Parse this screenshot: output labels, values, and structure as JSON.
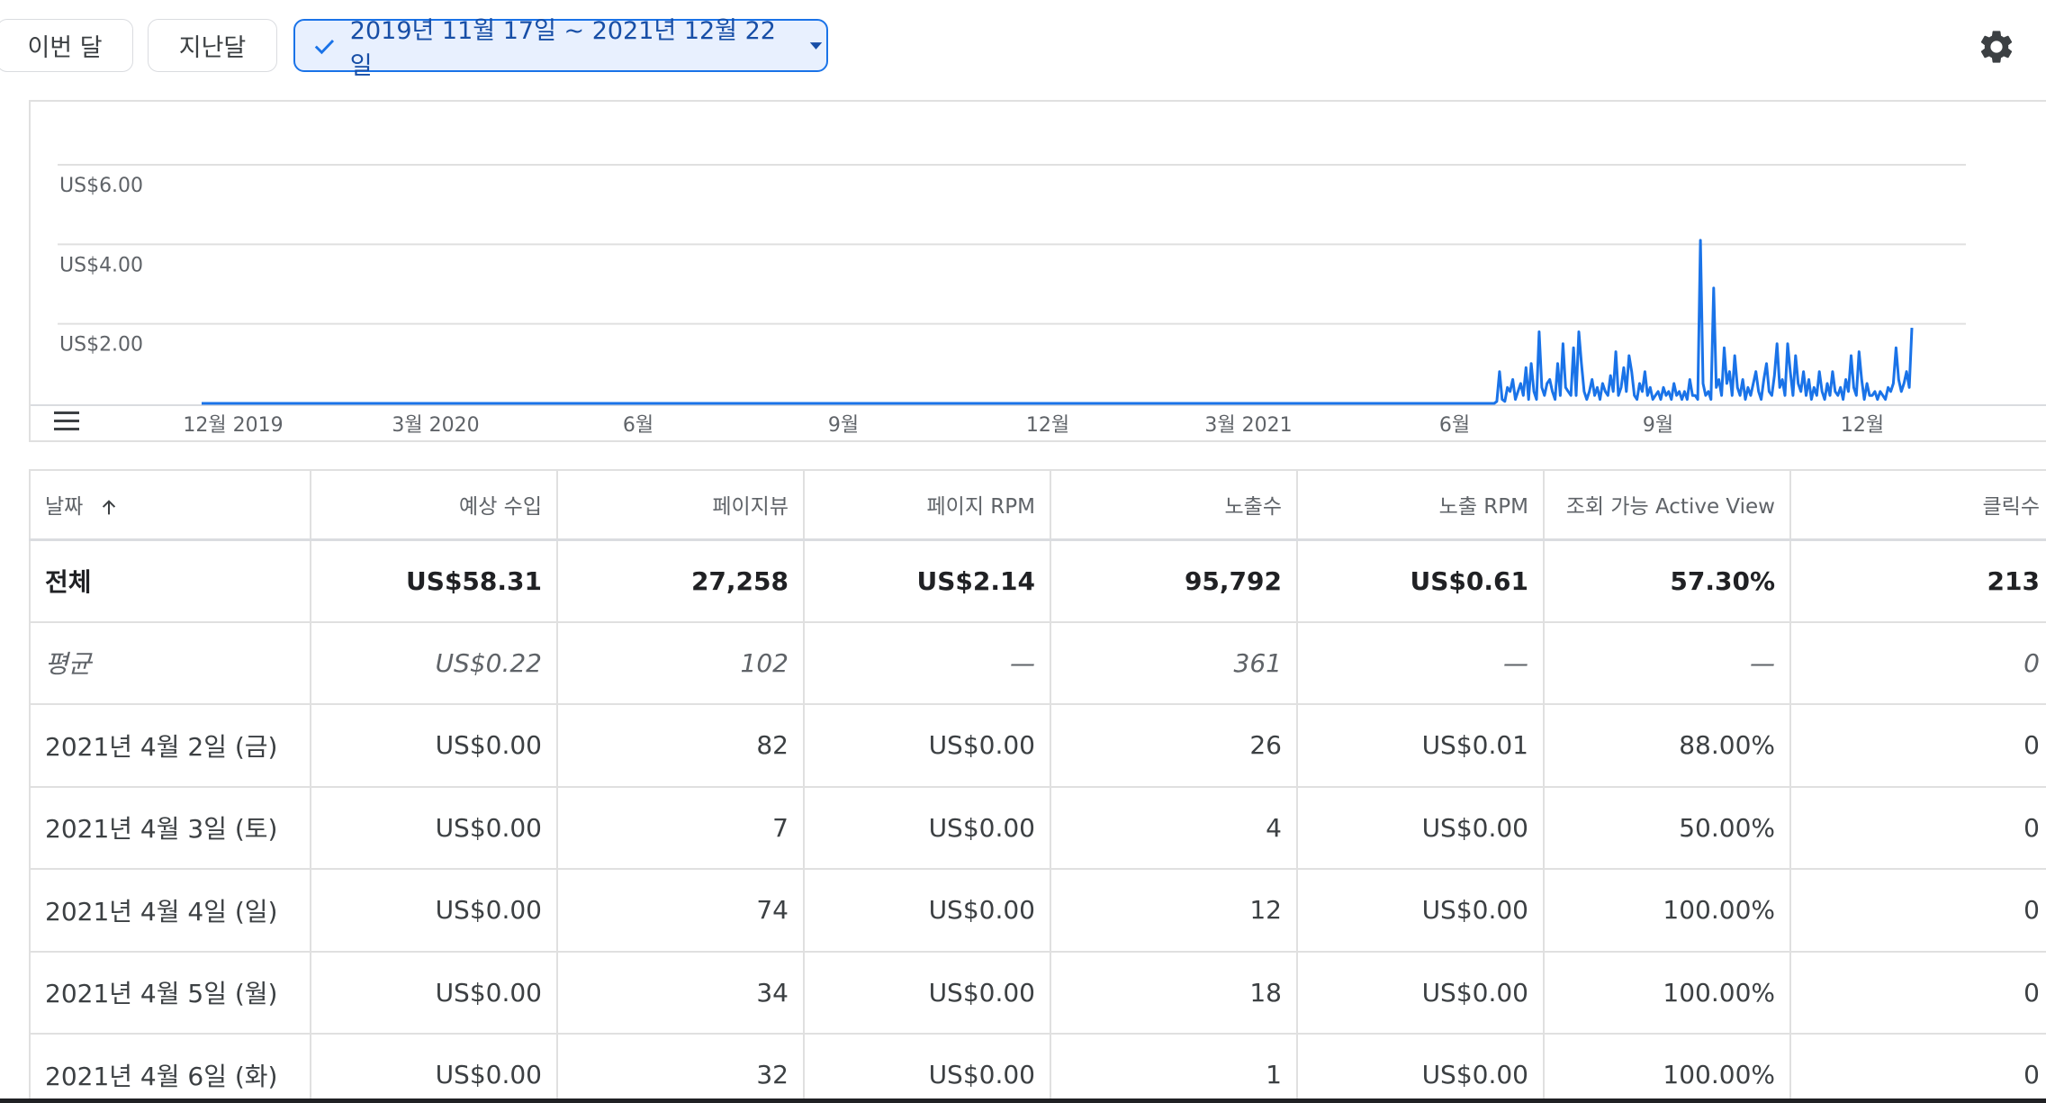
{
  "filters": {
    "this_month": "이번 달",
    "last_month": "지난달",
    "date_range": "2019년 11월 17일 ~ 2021년 12월 22일"
  },
  "icons": {
    "settings": "gear-icon",
    "check": "check-icon",
    "dropdown": "caret-down-icon",
    "legend_menu": "legend-menu-icon",
    "sort": "arrow-up-icon"
  },
  "colors": {
    "accent": "#1a73e8",
    "chip_selected_bg": "#e8f0fe",
    "line": "#1a73e8"
  },
  "chart_data": {
    "type": "line",
    "y_ticks": [
      "US$6.00",
      "US$4.00",
      "US$2.00"
    ],
    "x_ticks": [
      "12월 2019",
      "3월 2020",
      "6월",
      "9월",
      "12월",
      "3월 2021",
      "6월",
      "9월",
      "12월"
    ],
    "ylim": [
      0,
      6.5
    ],
    "grid": true,
    "series": [
      {
        "values": [
          0,
          0,
          0,
          0,
          0,
          0,
          0,
          0,
          0,
          0,
          0,
          0,
          0,
          0,
          0,
          0,
          0,
          0,
          0,
          0,
          0,
          0,
          0,
          0,
          0,
          0,
          0,
          0,
          0,
          0,
          0,
          0,
          0,
          0,
          0,
          0,
          0,
          0,
          0,
          0,
          0,
          0,
          0,
          0,
          0,
          0,
          0,
          0,
          0,
          0,
          0,
          0,
          0,
          0,
          0,
          0,
          0,
          0,
          0,
          0,
          0,
          0,
          0,
          0,
          0,
          0,
          0,
          0,
          0,
          0,
          0,
          0,
          0,
          0,
          0,
          0,
          0,
          0,
          0,
          0,
          0,
          0,
          0,
          0,
          0,
          0,
          0,
          0,
          0,
          0,
          0,
          0,
          0,
          0,
          0,
          0,
          0,
          0,
          0,
          0,
          0,
          0,
          0,
          0,
          0,
          0,
          0,
          0,
          0,
          0,
          0,
          0,
          0,
          0,
          0,
          0,
          0,
          0,
          0,
          0,
          0,
          0,
          0,
          0,
          0,
          0,
          0,
          0,
          0,
          0,
          0,
          0,
          0,
          0,
          0,
          0,
          0,
          0,
          0,
          0,
          0,
          0,
          0,
          0,
          0,
          0,
          0,
          0,
          0,
          0,
          0,
          0,
          0,
          0,
          0,
          0,
          0,
          0,
          0,
          0,
          0,
          0,
          0,
          0,
          0,
          0,
          0,
          0,
          0,
          0,
          0,
          0,
          0,
          0,
          0,
          0,
          0,
          0,
          0,
          0,
          0,
          0,
          0,
          0,
          0,
          0,
          0,
          0,
          0,
          0,
          0,
          0,
          0,
          0,
          0,
          0,
          0,
          0,
          0,
          0,
          0,
          0,
          0,
          0,
          0,
          0,
          0,
          0,
          0,
          0,
          0,
          0,
          0,
          0,
          0,
          0,
          0,
          0,
          0,
          0,
          0,
          0,
          0,
          0,
          0,
          0,
          0,
          0,
          0,
          0,
          0,
          0,
          0,
          0,
          0,
          0,
          0,
          0,
          0,
          0,
          0,
          0,
          0,
          0,
          0,
          0,
          0,
          0,
          0,
          0,
          0,
          0,
          0,
          0,
          0,
          0,
          0,
          0,
          0,
          0,
          0,
          0,
          0,
          0,
          0,
          0,
          0,
          0,
          0,
          0,
          0,
          0,
          0,
          0,
          0,
          0,
          0,
          0,
          0,
          0,
          0,
          0,
          0,
          0,
          0,
          0,
          0,
          0,
          0,
          0,
          0,
          0,
          0,
          0,
          0,
          0,
          0,
          0,
          0,
          0,
          0,
          0,
          0,
          0,
          0,
          0,
          0,
          0,
          0,
          0,
          0,
          0,
          0,
          0,
          0,
          0,
          0,
          0,
          0,
          0,
          0,
          0,
          0,
          0,
          0,
          0,
          0,
          0,
          0,
          0,
          0,
          0,
          0,
          0,
          0,
          0,
          0,
          0,
          0,
          0,
          0,
          0,
          0,
          0,
          0,
          0,
          0,
          0,
          0,
          0,
          0,
          0,
          0,
          0,
          0,
          0,
          0,
          0,
          0,
          0,
          0,
          0,
          0,
          0,
          0,
          0,
          0,
          0,
          0,
          0,
          0,
          0,
          0,
          0,
          0,
          0,
          0,
          0,
          0,
          0,
          0,
          0,
          0,
          0,
          0,
          0,
          0,
          0,
          0,
          0,
          0,
          0,
          0,
          0,
          0,
          0,
          0,
          0,
          0,
          0,
          0,
          0,
          0,
          0,
          0,
          0,
          0,
          0,
          0,
          0,
          0,
          0,
          0,
          0,
          0,
          0,
          0,
          0,
          0,
          0,
          0,
          0,
          0,
          0,
          0,
          0,
          0,
          0,
          0,
          0,
          0,
          0,
          0,
          0,
          0,
          0,
          0,
          0,
          0,
          0,
          0,
          0,
          0,
          0,
          0,
          0,
          0,
          0,
          0,
          0,
          0,
          0,
          0,
          0,
          0,
          0,
          0,
          0,
          0,
          0,
          0,
          0,
          0,
          0,
          0,
          0,
          0,
          0,
          0,
          0,
          0,
          0,
          0,
          0,
          0,
          0,
          0,
          0,
          0,
          0,
          0,
          0,
          0,
          0,
          0,
          0,
          0,
          0,
          0,
          0,
          0.05,
          0.8,
          0.1,
          0.05,
          0.4,
          0.3,
          0.6,
          0.1,
          0.3,
          0.5,
          0.2,
          0.9,
          0.1,
          1.0,
          0.3,
          0.1,
          1.8,
          0.4,
          0.2,
          0.5,
          0.6,
          0.3,
          0.1,
          1.0,
          0.2,
          1.5,
          0.4,
          0.3,
          0.2,
          1.4,
          0.2,
          1.8,
          1.0,
          0.3,
          0.1,
          0.3,
          0.6,
          0.2,
          0.4,
          0.1,
          0.5,
          0.3,
          0.2,
          0.7,
          0.3,
          1.3,
          0.2,
          0.4,
          0.9,
          0.3,
          1.2,
          0.8,
          0.2,
          0.1,
          0.5,
          0.3,
          0.8,
          0.2,
          0.4,
          0.1,
          0.2,
          0.3,
          0.1,
          0.4,
          0.2,
          0.3,
          0.1,
          0.5,
          0.2,
          0.3,
          0.1,
          0.3,
          0.1,
          0.6,
          0.2,
          0.2,
          0.1,
          4.1,
          0.5,
          0.2,
          0.3,
          0.1,
          2.9,
          0.4,
          0.6,
          0.2,
          1.4,
          0.5,
          0.8,
          0.2,
          1.2,
          0.4,
          0.2,
          0.6,
          0.1,
          0.4,
          0.2,
          0.5,
          0.8,
          0.3,
          0.1,
          0.6,
          1.0,
          0.3,
          0.2,
          0.7,
          1.5,
          0.4,
          0.6,
          0.2,
          1.5,
          0.8,
          0.2,
          1.2,
          0.5,
          0.3,
          0.8,
          0.2,
          0.6,
          0.1,
          0.4,
          0.2,
          0.8,
          0.3,
          0.1,
          0.5,
          0.2,
          0.8,
          0.3,
          0.2,
          0.4,
          0.1,
          0.6,
          0.3,
          1.2,
          0.4,
          0.2,
          1.3,
          0.6,
          0.1,
          0.5,
          0.2,
          0.2,
          0.3,
          0.1,
          0.3,
          0.2,
          0.1,
          0.4,
          0.3,
          0.5,
          1.4,
          0.6,
          0.3,
          0.5,
          0.8,
          0.4,
          1.9
        ]
      }
    ]
  },
  "table": {
    "columns": [
      "날짜",
      "예상 수입",
      "페이지뷰",
      "페이지 RPM",
      "노출수",
      "노출 RPM",
      "조회 가능 Active View",
      "클릭수"
    ],
    "total": [
      "전체",
      "US$58.31",
      "27,258",
      "US$2.14",
      "95,792",
      "US$0.61",
      "57.30%",
      "213"
    ],
    "average": [
      "평균",
      "US$0.22",
      "102",
      "—",
      "361",
      "—",
      "—",
      "0"
    ],
    "rows": [
      [
        "2021년 4월 2일 (금)",
        "US$0.00",
        "82",
        "US$0.00",
        "26",
        "US$0.01",
        "88.00%",
        "0"
      ],
      [
        "2021년 4월 3일 (토)",
        "US$0.00",
        "7",
        "US$0.00",
        "4",
        "US$0.00",
        "50.00%",
        "0"
      ],
      [
        "2021년 4월 4일 (일)",
        "US$0.00",
        "74",
        "US$0.00",
        "12",
        "US$0.00",
        "100.00%",
        "0"
      ],
      [
        "2021년 4월 5일 (월)",
        "US$0.00",
        "34",
        "US$0.00",
        "18",
        "US$0.00",
        "100.00%",
        "0"
      ],
      [
        "2021년 4월 6일 (화)",
        "US$0.00",
        "32",
        "US$0.00",
        "1",
        "US$0.00",
        "100.00%",
        "0"
      ]
    ]
  }
}
